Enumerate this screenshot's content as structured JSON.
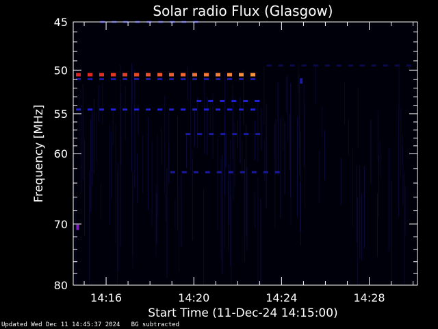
{
  "chart_data": {
    "type": "heatmap",
    "title": "Solar radio Flux (Glasgow)",
    "xlabel": "Start Time (11-Dec-24 14:15:00)",
    "ylabel": "Frequency [MHz]",
    "x_range_minutes": [
      14.5,
      30.2
    ],
    "y_range_mhz": [
      45,
      80
    ],
    "y_scale": "log",
    "y_inverted": true,
    "x_ticks": [
      "14:16",
      "14:20",
      "14:24",
      "14:28"
    ],
    "x_tick_minutes": [
      16,
      20,
      24,
      28
    ],
    "y_ticks": [
      45,
      50,
      55,
      60,
      70,
      80
    ],
    "bands": [
      {
        "freq_mhz": 45.0,
        "t_start": 15.6,
        "t_end": 20.5,
        "level": "low"
      },
      {
        "freq_mhz": 50.5,
        "t_start": 14.5,
        "t_end": 23.2,
        "level": "high"
      },
      {
        "freq_mhz": 51.0,
        "t_start": 14.5,
        "t_end": 23.2,
        "level": "low"
      },
      {
        "freq_mhz": 53.5,
        "t_start": 20.0,
        "t_end": 23.2,
        "level": "mid-low"
      },
      {
        "freq_mhz": 54.5,
        "t_start": 14.5,
        "t_end": 23.2,
        "level": "mid-low"
      },
      {
        "freq_mhz": 57.5,
        "t_start": 19.5,
        "t_end": 23.2,
        "level": "low"
      },
      {
        "freq_mhz": 62.5,
        "t_start": 18.8,
        "t_end": 23.8,
        "level": "low"
      },
      {
        "freq_mhz": 49.5,
        "t_start": 23.2,
        "t_end": 30.2,
        "level": "faint"
      }
    ],
    "spots": [
      {
        "minute": 14.7,
        "freq_mhz": 70.5,
        "level": "mid"
      },
      {
        "minute": 24.9,
        "freq_mhz": 51.2,
        "level": "low"
      }
    ],
    "colors": {
      "background": "#000000",
      "faint": "#0a0a4a",
      "low": "#1a1aa0",
      "mid-low": "#2020d8",
      "mid": "#8020c0",
      "high_start": "#e02020",
      "high_end": "#ffa040",
      "axes": "#ffffff"
    }
  },
  "footer": {
    "updated": "Updated Wed Dec 11 14:45:37 2024",
    "note": "BG subtracted"
  }
}
